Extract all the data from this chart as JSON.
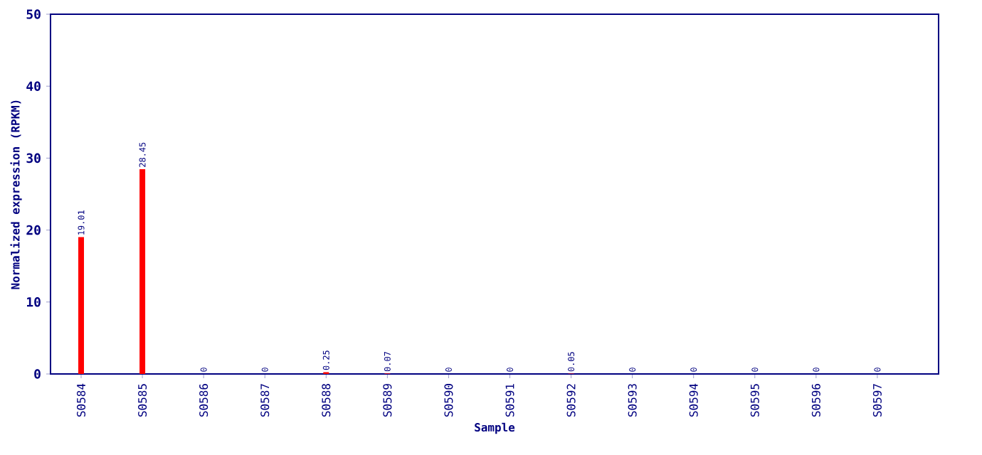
{
  "chart_data": {
    "type": "bar",
    "xlabel": "Sample",
    "ylabel": "Normalized expression (RPKM)",
    "categories": [
      "S0584",
      "S0585",
      "S0586",
      "S0587",
      "S0588",
      "S0589",
      "S0590",
      "S0591",
      "S0592",
      "S0593",
      "S0594",
      "S0595",
      "S0596",
      "S0597"
    ],
    "values": [
      19.01,
      28.45,
      0,
      0,
      0.25,
      0.07,
      0,
      0,
      0.05,
      0,
      0,
      0,
      0,
      0
    ],
    "color": "#ff0000",
    "ylim": [
      0,
      50
    ],
    "yticks": [
      0,
      10,
      20,
      30,
      40,
      50
    ],
    "data_labels": true,
    "grid": false
  }
}
